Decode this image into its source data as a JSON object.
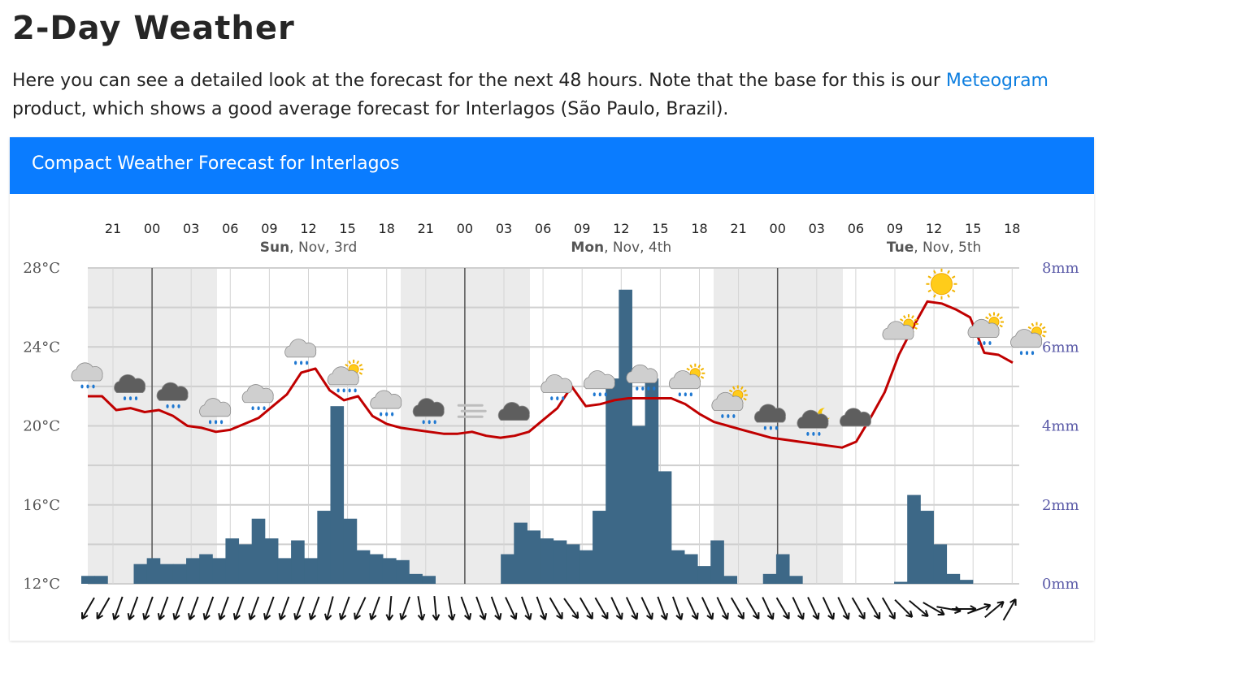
{
  "page": {
    "title": "2-Day Weather",
    "intro_before": "Here you can see a detailed look at the forecast for the next 48 hours. Note that the base for this is our ",
    "intro_link": "Meteogram",
    "intro_after": " product, which shows a good average forecast for Interlagos (São Paulo, Brazil)."
  },
  "card": {
    "title": "Compact Weather Forecast for Interlagos"
  },
  "colors": {
    "header": "#0a7cff",
    "temperature_line": "#c00000",
    "precip_bars": "#3d6887",
    "night_shade": "#ebebeb",
    "mm_axis": "#5b5ba8",
    "link": "#0e7fe0"
  },
  "chart_data": {
    "type": "bar+line",
    "hour_labels": [
      "21",
      "00",
      "03",
      "06",
      "09",
      "12",
      "15",
      "18",
      "21",
      "00",
      "03",
      "06",
      "09",
      "12",
      "15",
      "18",
      "21",
      "00",
      "03",
      "06",
      "09",
      "12",
      "15",
      "18"
    ],
    "days": [
      {
        "day": "Sun",
        "date": ", Nov, 3rd"
      },
      {
        "day": "Mon",
        "date": ", Nov, 4th"
      },
      {
        "day": "Tue",
        "date": ", Nov, 5th"
      }
    ],
    "y_left": {
      "ticks": [
        "28°C",
        "24°C",
        "20°C",
        "16°C",
        "12°C"
      ],
      "range": [
        12,
        28
      ]
    },
    "y_right": {
      "ticks": [
        "8mm",
        "6mm",
        "4mm",
        "2mm",
        "0mm"
      ],
      "range": [
        0,
        8
      ]
    },
    "temperature_c": [
      21.5,
      21.5,
      20.8,
      20.9,
      20.7,
      20.8,
      20.5,
      20.0,
      19.9,
      19.7,
      19.8,
      20.1,
      20.4,
      21.0,
      21.6,
      22.7,
      22.9,
      21.8,
      21.3,
      21.5,
      20.5,
      20.1,
      19.9,
      19.8,
      19.7,
      19.6,
      19.6,
      19.7,
      19.5,
      19.4,
      19.5,
      19.7,
      20.3,
      20.9,
      22.0,
      21.0,
      21.1,
      21.3,
      21.4,
      21.4,
      21.4,
      21.4,
      21.1,
      20.6,
      20.2,
      20.0,
      19.8,
      19.6,
      19.4,
      19.3,
      19.2,
      19.1,
      19.0,
      18.9,
      19.2,
      20.4,
      21.7,
      23.6,
      25.0,
      26.3,
      26.2,
      25.9,
      25.5,
      23.7,
      23.6,
      23.2
    ],
    "precip_mm": [
      0.2,
      0.2,
      0,
      0,
      0.5,
      0.65,
      0.5,
      0.5,
      0.65,
      0.75,
      0.65,
      1.15,
      1,
      1.65,
      1.15,
      0.65,
      1.1,
      0.65,
      1.85,
      4.5,
      1.65,
      0.85,
      0.75,
      0.65,
      0.6,
      0.25,
      0.2,
      0,
      0,
      0,
      0,
      0,
      0.75,
      1.55,
      1.35,
      1.15,
      1.1,
      1,
      0.85,
      1.85,
      5.2,
      7.45,
      4,
      5.2,
      2.85,
      0.85,
      0.75,
      0.45,
      1.1,
      0.2,
      0,
      0,
      0.25,
      0.75,
      0.2,
      0,
      0,
      0,
      0,
      0,
      0,
      0,
      0.05,
      2.25,
      1.85,
      1,
      0.25,
      0.1
    ],
    "night_periods": [
      [
        "21",
        "06"
      ],
      [
        "21",
        "06"
      ],
      [
        "21",
        "06"
      ]
    ],
    "weather_icons": [
      {
        "hour": "21",
        "icon": "cloud-light-rain-icon"
      },
      {
        "hour": "00",
        "icon": "dark-cloud-rain-icon"
      },
      {
        "hour": "03",
        "icon": "dark-cloud-rain-icon"
      },
      {
        "hour": "06",
        "icon": "cloud-light-rain-icon"
      },
      {
        "hour": "09",
        "icon": "cloud-light-rain-icon"
      },
      {
        "hour": "12",
        "icon": "cloud-rain-icon"
      },
      {
        "hour": "15",
        "icon": "sun-cloud-heavy-rain-icon"
      },
      {
        "hour": "18",
        "icon": "cloud-light-rain-icon"
      },
      {
        "hour": "21",
        "icon": "dark-cloud-rain-icon"
      },
      {
        "hour": "00",
        "icon": "fog-icon"
      },
      {
        "hour": "03",
        "icon": "dark-cloud-icon"
      },
      {
        "hour": "06",
        "icon": "cloud-light-rain-icon"
      },
      {
        "hour": "09",
        "icon": "cloud-rain-icon"
      },
      {
        "hour": "12",
        "icon": "cloud-heavy-rain-icon"
      },
      {
        "hour": "15",
        "icon": "sun-cloud-rain-icon"
      },
      {
        "hour": "18",
        "icon": "sun-cloud-rain-icon"
      },
      {
        "hour": "21",
        "icon": "dark-cloud-rain-icon"
      },
      {
        "hour": "00",
        "icon": "moon-cloud-rain-icon"
      },
      {
        "hour": "03",
        "icon": "dark-cloud-icon"
      },
      {
        "hour": "06",
        "icon": "sun-cloud-icon"
      },
      {
        "hour": "09",
        "icon": "sun-icon"
      },
      {
        "hour": "12",
        "icon": "sun-cloud-rain-icon"
      },
      {
        "hour": "15",
        "icon": "sun-cloud-rain-icon"
      }
    ],
    "wind_direction_deg": [
      120,
      120,
      110,
      110,
      110,
      110,
      110,
      110,
      110,
      110,
      110,
      110,
      110,
      110,
      110,
      110,
      105,
      110,
      115,
      110,
      95,
      110,
      80,
      85,
      80,
      70,
      70,
      70,
      65,
      70,
      70,
      60,
      55,
      60,
      60,
      65,
      65,
      65,
      70,
      70,
      65,
      65,
      65,
      60,
      60,
      65,
      60,
      65,
      65,
      65,
      65,
      60,
      60,
      60,
      45,
      40,
      30,
      10,
      0,
      -20,
      -40,
      -60
    ],
    "grid": true
  }
}
